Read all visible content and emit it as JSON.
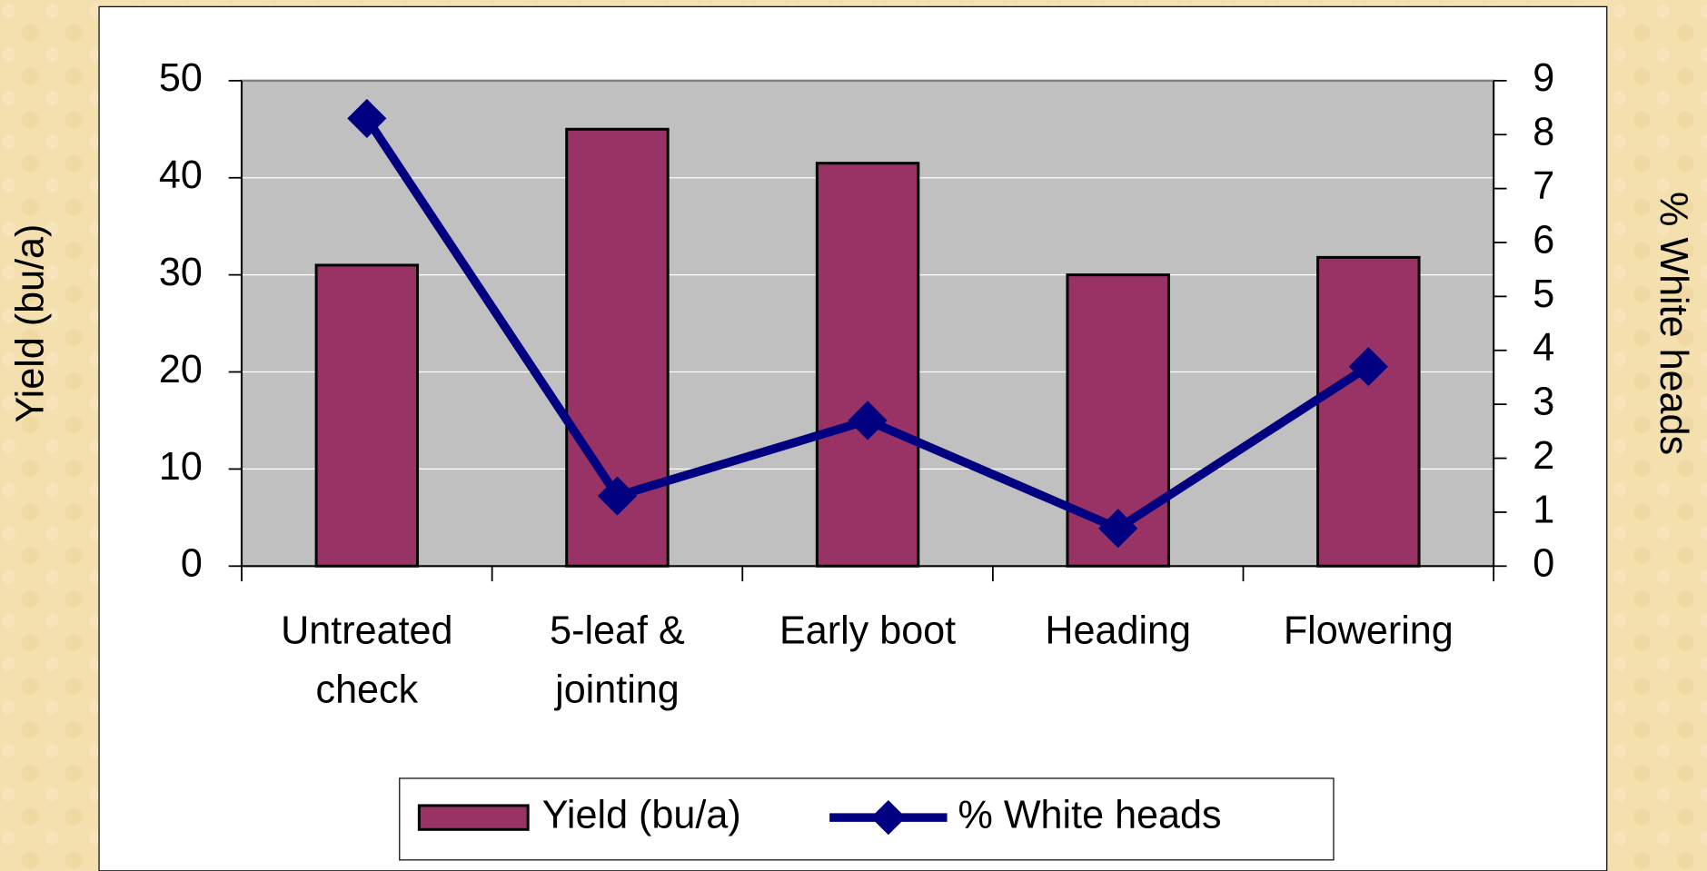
{
  "chart_data": {
    "type": "bar-line",
    "categories": [
      "Untreated\ncheck",
      "5-leaf &\njointing",
      "Early boot",
      "Heading",
      "Flowering"
    ],
    "series": [
      {
        "name": "Yield (bu/a)",
        "type": "bar",
        "color": "#993366",
        "values": [
          31,
          45,
          41.5,
          30,
          31.8
        ]
      },
      {
        "name": "% White heads",
        "type": "line",
        "axis": "y2",
        "color": "#000080",
        "values": [
          8.3,
          1.3,
          2.7,
          0.7,
          3.7
        ]
      }
    ],
    "ylabel": "Yield (bu/a)",
    "y2label": "% White heads",
    "ylim": [
      0,
      50
    ],
    "yticks": [
      0,
      10,
      20,
      30,
      40,
      50
    ],
    "y2lim": [
      0,
      9
    ],
    "y2ticks": [
      0,
      1,
      2,
      3,
      4,
      5,
      6,
      7,
      8,
      9
    ],
    "grid": true,
    "legend": "bottom"
  }
}
